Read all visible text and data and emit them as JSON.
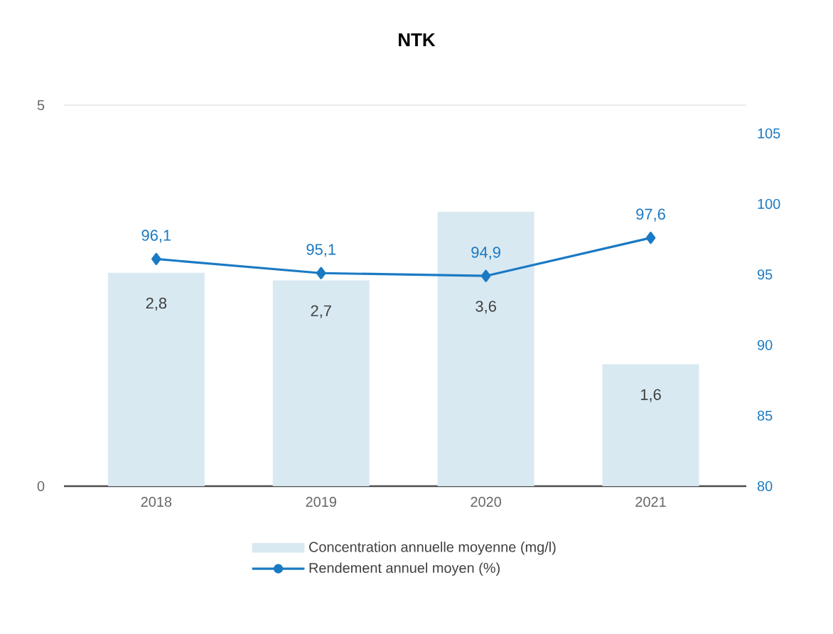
{
  "chart_data": {
    "type": "bar",
    "title": "NTK",
    "categories": [
      "2018",
      "2019",
      "2020",
      "2021"
    ],
    "ylim": [
      0,
      5
    ],
    "yticks": [
      0,
      5
    ],
    "y2lim": [
      80,
      107
    ],
    "y2ticks": [
      80,
      85,
      90,
      95,
      100,
      105
    ],
    "grid": "y",
    "legend": "bottom",
    "marker": "diamond",
    "series": [
      {
        "name": "Concentration annuelle moyenne (mg/l)",
        "color": "#d9e9f2",
        "values": [
          2.8,
          2.7,
          3.6,
          1.6
        ],
        "value_labels": [
          "2,8",
          "2,7",
          "3,6",
          "1,6"
        ]
      },
      {
        "name": "Rendement annuel moyen (%)",
        "type": "line",
        "axis": "y2",
        "color": "#1a7ac4",
        "values": [
          96.1,
          95.1,
          94.9,
          97.6
        ],
        "value_labels": [
          "96,1",
          "95,1",
          "94,9",
          "97,6"
        ]
      }
    ]
  }
}
